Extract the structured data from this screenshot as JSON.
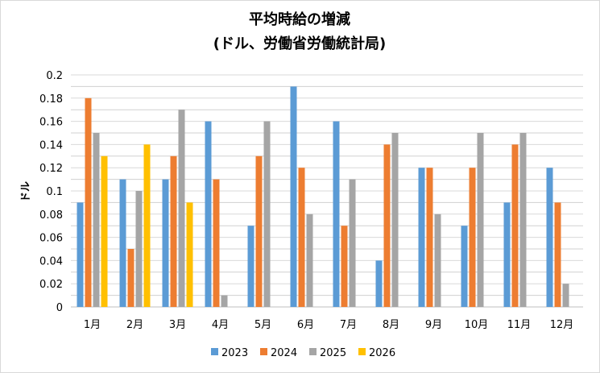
{
  "chart_data": {
    "type": "bar",
    "title_line1": "平均時給の増減",
    "title_line2": "(ドル、労働省労働統計局)",
    "xlabel": "",
    "ylabel": "ドル",
    "ylim": [
      0,
      0.2
    ],
    "yticks": [
      "0",
      "0.02",
      "0.04",
      "0.06",
      "0.08",
      "0.1",
      "0.12",
      "0.14",
      "0.16",
      "0.18",
      "0.2"
    ],
    "grid": true,
    "legend": "bottom",
    "categories": [
      "1月",
      "2月",
      "3月",
      "4月",
      "5月",
      "6月",
      "7月",
      "8月",
      "9月",
      "10月",
      "11月",
      "12月"
    ],
    "series": [
      {
        "name": "2023",
        "color": "#5B9BD5",
        "values": [
          0.09,
          0.11,
          0.11,
          0.16,
          0.07,
          0.19,
          0.16,
          0.04,
          0.12,
          0.07,
          0.09,
          0.12
        ]
      },
      {
        "name": "2024",
        "color": "#ED7D31",
        "values": [
          0.18,
          0.05,
          0.13,
          0.11,
          0.13,
          0.12,
          0.07,
          0.14,
          0.12,
          0.12,
          0.14,
          0.09
        ]
      },
      {
        "name": "2025",
        "color": "#A5A5A5",
        "values": [
          0.15,
          0.1,
          0.17,
          0.01,
          0.16,
          0.08,
          0.11,
          0.15,
          0.08,
          0.15,
          0.15,
          0.02
        ]
      },
      {
        "name": "2026",
        "color": "#FFC000",
        "values": [
          0.13,
          0.14,
          0.09,
          null,
          null,
          null,
          null,
          null,
          null,
          null,
          null,
          null
        ]
      }
    ]
  }
}
